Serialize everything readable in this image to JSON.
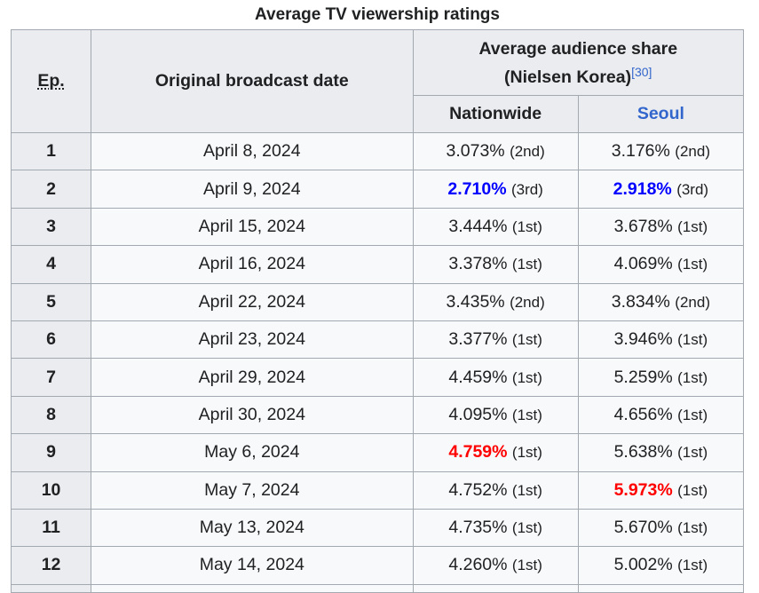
{
  "caption": "Average TV viewership ratings",
  "header": {
    "ep_label": "Ep.",
    "date_label": "Original broadcast date",
    "share_label_line1": "Average audience share",
    "share_label_line2": "(Nielsen Korea)",
    "share_ref": "[30]",
    "nationwide_label": "Nationwide",
    "seoul_label": "Seoul"
  },
  "colors": {
    "lowest": "#0000ff",
    "highest": "#ff0000",
    "link": "#3366cc"
  },
  "rows": [
    {
      "ep": "1",
      "date": "April 8, 2024",
      "nat": "3.073%",
      "nat_rank": "(2nd)",
      "nat_mark": "",
      "seo": "3.176%",
      "seo_rank": "(2nd)",
      "seo_mark": ""
    },
    {
      "ep": "2",
      "date": "April 9, 2024",
      "nat": "2.710%",
      "nat_rank": "(3rd)",
      "nat_mark": "low",
      "seo": "2.918%",
      "seo_rank": "(3rd)",
      "seo_mark": "low"
    },
    {
      "ep": "3",
      "date": "April 15, 2024",
      "nat": "3.444%",
      "nat_rank": "(1st)",
      "nat_mark": "",
      "seo": "3.678%",
      "seo_rank": "(1st)",
      "seo_mark": ""
    },
    {
      "ep": "4",
      "date": "April 16, 2024",
      "nat": "3.378%",
      "nat_rank": "(1st)",
      "nat_mark": "",
      "seo": "4.069%",
      "seo_rank": "(1st)",
      "seo_mark": ""
    },
    {
      "ep": "5",
      "date": "April 22, 2024",
      "nat": "3.435%",
      "nat_rank": "(2nd)",
      "nat_mark": "",
      "seo": "3.834%",
      "seo_rank": "(2nd)",
      "seo_mark": ""
    },
    {
      "ep": "6",
      "date": "April 23, 2024",
      "nat": "3.377%",
      "nat_rank": "(1st)",
      "nat_mark": "",
      "seo": "3.946%",
      "seo_rank": "(1st)",
      "seo_mark": ""
    },
    {
      "ep": "7",
      "date": "April 29, 2024",
      "nat": "4.459%",
      "nat_rank": "(1st)",
      "nat_mark": "",
      "seo": "5.259%",
      "seo_rank": "(1st)",
      "seo_mark": ""
    },
    {
      "ep": "8",
      "date": "April 30, 2024",
      "nat": "4.095%",
      "nat_rank": "(1st)",
      "nat_mark": "",
      "seo": "4.656%",
      "seo_rank": "(1st)",
      "seo_mark": ""
    },
    {
      "ep": "9",
      "date": "May 6, 2024",
      "nat": "4.759%",
      "nat_rank": "(1st)",
      "nat_mark": "high",
      "seo": "5.638%",
      "seo_rank": "(1st)",
      "seo_mark": ""
    },
    {
      "ep": "10",
      "date": "May 7, 2024",
      "nat": "4.752%",
      "nat_rank": "(1st)",
      "nat_mark": "",
      "seo": "5.973%",
      "seo_rank": "(1st)",
      "seo_mark": "high"
    },
    {
      "ep": "11",
      "date": "May 13, 2024",
      "nat": "4.735%",
      "nat_rank": "(1st)",
      "nat_mark": "",
      "seo": "5.670%",
      "seo_rank": "(1st)",
      "seo_mark": ""
    },
    {
      "ep": "12",
      "date": "May 14, 2024",
      "nat": "4.260%",
      "nat_rank": "(1st)",
      "nat_mark": "",
      "seo": "5.002%",
      "seo_rank": "(1st)",
      "seo_mark": ""
    }
  ]
}
